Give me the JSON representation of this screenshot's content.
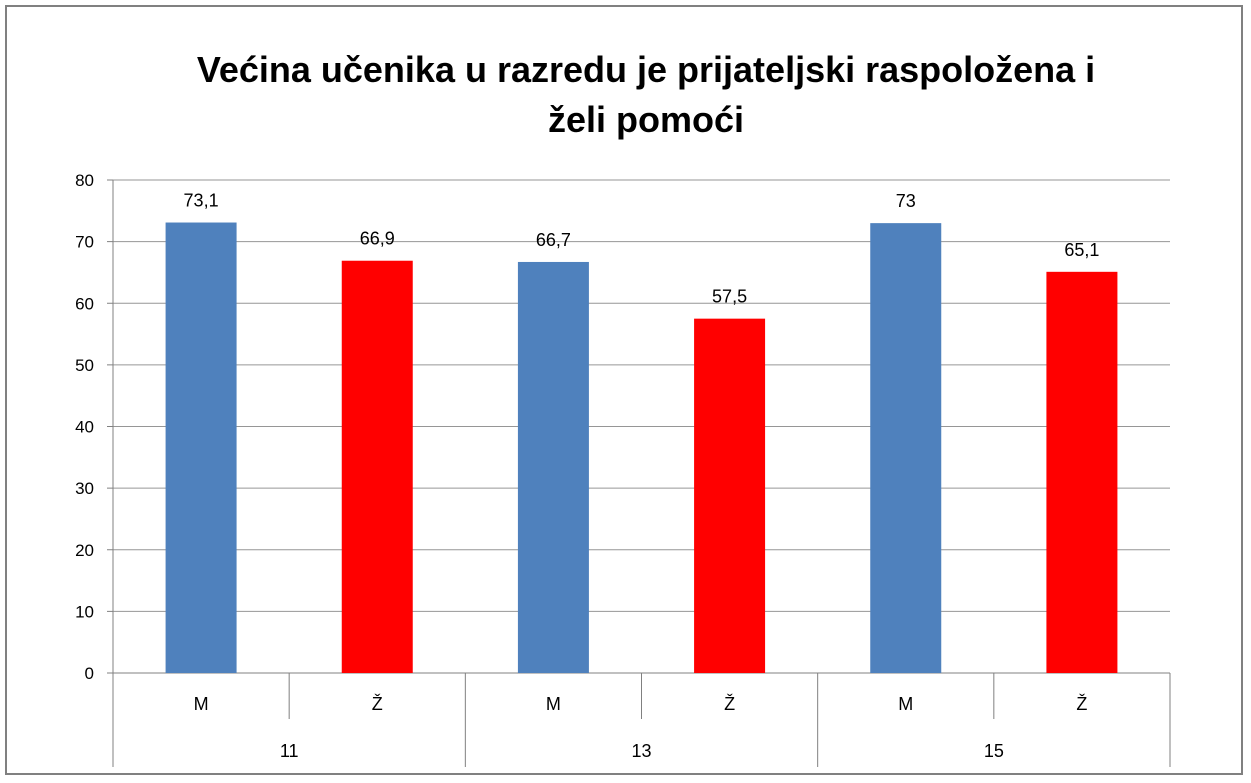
{
  "chart_data": {
    "type": "bar",
    "title_lines": [
      "Većina učenika u razredu je prijateljski raspoložena i",
      "želi pomoći"
    ],
    "xlabel": "",
    "ylabel": "",
    "ylim": [
      0,
      80
    ],
    "y_ticks": [
      0,
      10,
      20,
      30,
      40,
      50,
      60,
      70,
      80
    ],
    "groups": [
      "11",
      "13",
      "15"
    ],
    "categories": [
      "M",
      "Ž",
      "M",
      "Ž",
      "M",
      "Ž"
    ],
    "values": [
      73.1,
      66.9,
      66.7,
      57.5,
      73,
      65.1
    ],
    "data_labels": [
      "73,1",
      "66,9",
      "66,7",
      "57,5",
      "73",
      "65,1"
    ],
    "bar_colors": [
      "#4F81BD",
      "#FF0000",
      "#4F81BD",
      "#FF0000",
      "#4F81BD",
      "#FF0000"
    ],
    "grid": true,
    "legend": "none"
  }
}
